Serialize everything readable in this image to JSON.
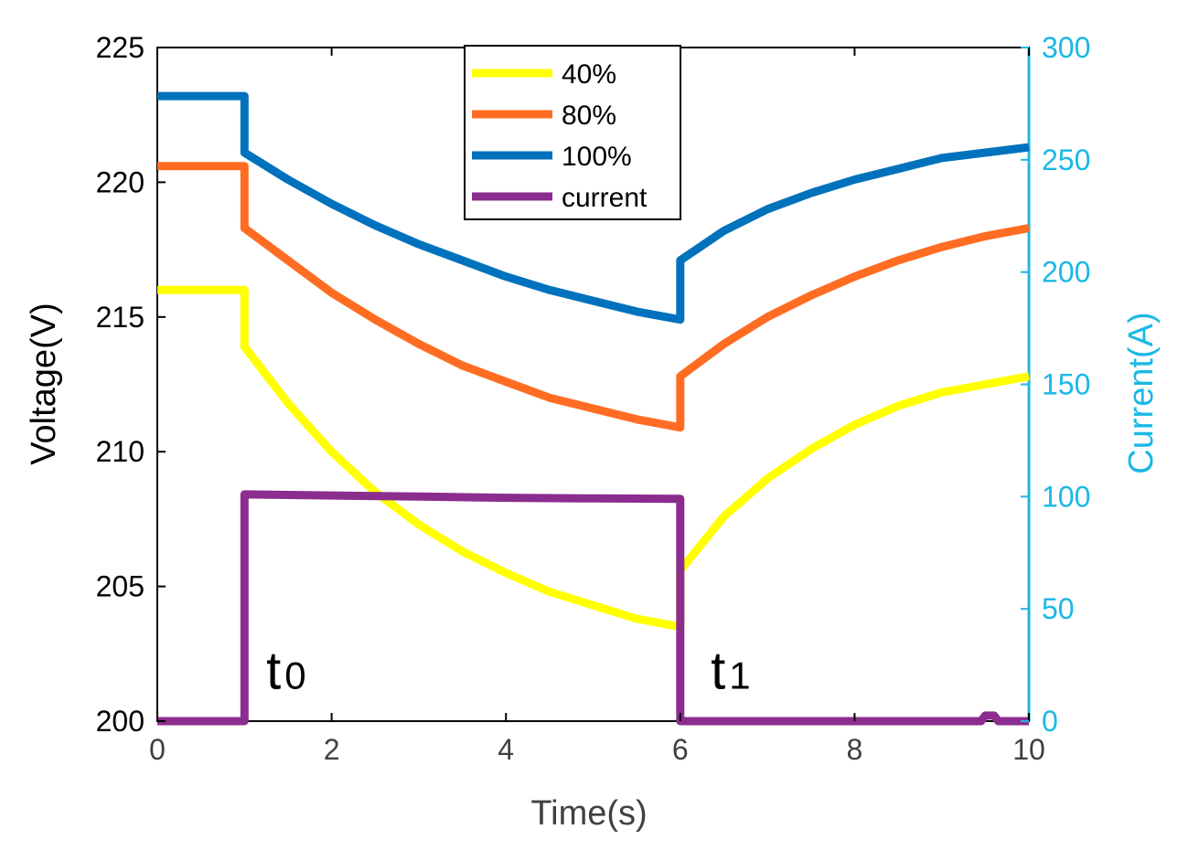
{
  "chart_data": {
    "type": "line",
    "xlabel": "Time(s)",
    "ylabel_left": "Voltage(V)",
    "ylabel_right": "Current(A)",
    "xlim": [
      0,
      10
    ],
    "ylim_left": [
      200,
      225
    ],
    "ylim_right": [
      0,
      300
    ],
    "x_ticks": [
      0,
      2,
      4,
      6,
      8,
      10
    ],
    "y_left_ticks": [
      200,
      205,
      210,
      215,
      220,
      225
    ],
    "y_right_ticks": [
      0,
      50,
      100,
      150,
      200,
      250,
      300
    ],
    "legend_position": "top-center",
    "grid": false,
    "annotations": [
      {
        "base": "t",
        "sub": "0",
        "x": 1.25,
        "y": 201.2
      },
      {
        "base": "t",
        "sub": "1",
        "x": 6.35,
        "y": 201.2
      }
    ],
    "colors": {
      "axis_left": "#000000",
      "axis_right": "#1ab8e6",
      "series_40": "#ffff00",
      "series_80": "#ff6c22",
      "series_100": "#0072bd",
      "series_current": "#8b2d8f"
    },
    "series": [
      {
        "name": "40%",
        "axis": "left",
        "color": "#ffff00",
        "x": [
          0,
          1,
          1,
          1.5,
          2,
          2.5,
          3,
          3.5,
          4,
          4.5,
          5,
          5.5,
          6,
          6,
          6.5,
          7,
          7.5,
          8,
          8.5,
          9,
          9.5,
          10
        ],
        "y": [
          216.0,
          216.0,
          213.9,
          211.8,
          210.0,
          208.5,
          207.3,
          206.3,
          205.5,
          204.8,
          204.3,
          203.8,
          203.5,
          205.6,
          207.6,
          209.0,
          210.1,
          211.0,
          211.7,
          212.2,
          212.5,
          212.8
        ]
      },
      {
        "name": "80%",
        "axis": "left",
        "color": "#ff6c22",
        "x": [
          0,
          1,
          1,
          1.5,
          2,
          2.5,
          3,
          3.5,
          4,
          4.5,
          5,
          5.5,
          6,
          6,
          6.5,
          7,
          7.5,
          8,
          8.5,
          9,
          9.5,
          10
        ],
        "y": [
          220.6,
          220.6,
          218.3,
          217.1,
          215.9,
          214.9,
          214.0,
          213.2,
          212.6,
          212.0,
          211.6,
          211.2,
          210.9,
          212.8,
          214.0,
          215.0,
          215.8,
          216.5,
          217.1,
          217.6,
          218.0,
          218.3
        ]
      },
      {
        "name": "100%",
        "axis": "left",
        "color": "#0072bd",
        "x": [
          0,
          1,
          1,
          1.5,
          2,
          2.5,
          3,
          3.5,
          4,
          4.5,
          5,
          5.5,
          6,
          6,
          6.5,
          7,
          7.5,
          8,
          8.5,
          9,
          9.5,
          10
        ],
        "y": [
          223.2,
          223.2,
          221.1,
          220.1,
          219.2,
          218.4,
          217.7,
          217.1,
          216.5,
          216.0,
          215.6,
          215.2,
          214.9,
          217.1,
          218.2,
          219.0,
          219.6,
          220.1,
          220.5,
          220.9,
          221.1,
          221.3
        ]
      },
      {
        "name": "current",
        "axis": "right",
        "color": "#8b2d8f",
        "x": [
          0,
          1,
          1,
          2,
          3,
          4,
          5,
          6,
          6,
          7,
          8,
          9,
          9.45,
          9.5,
          9.6,
          9.65,
          10
        ],
        "y": [
          0,
          0,
          101,
          100.5,
          100,
          99.5,
          99.2,
          99,
          0,
          0,
          0,
          0,
          0,
          2.5,
          2.5,
          0,
          0
        ]
      }
    ]
  }
}
